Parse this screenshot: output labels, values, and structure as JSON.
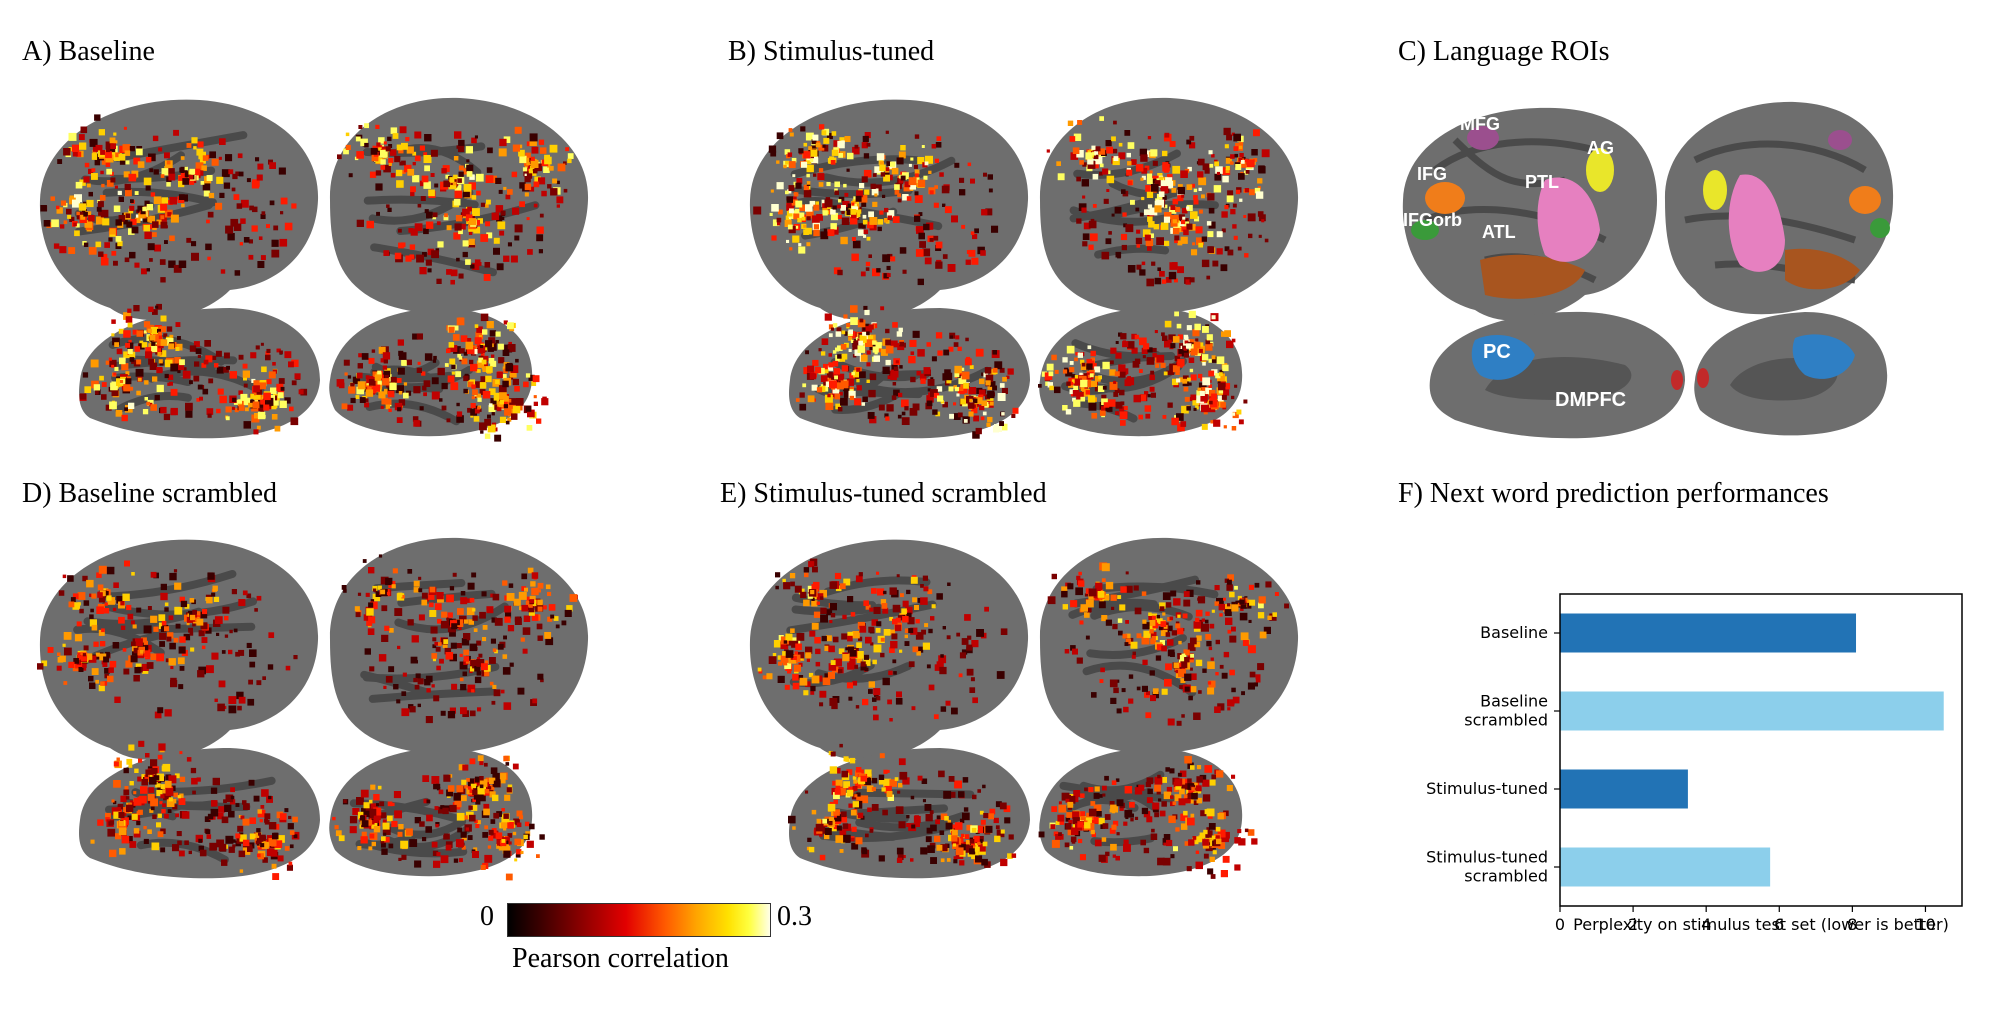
{
  "panels": {
    "a": "A) Baseline",
    "b": "B) Stimulus-tuned",
    "c": "C) Language ROIs",
    "d": "D) Baseline scrambled",
    "e": "E) Stimulus-tuned scrambled",
    "f": "F) Next word prediction  performances"
  },
  "rois": {
    "mfg": "MFG",
    "ifg": "IFG",
    "ifgorb": "IFGorb",
    "atl": "ATL",
    "ptl": "PTL",
    "ag": "AG",
    "pc": "PC",
    "dmpfc": "DMPFC"
  },
  "colorbar": {
    "min": "0",
    "max": "0.3",
    "label": "Pearson correlation"
  },
  "colors": {
    "cortex": "#6e6e6e",
    "sulci": "#4a4a4a",
    "dark_blue": "#2273b5",
    "light_blue": "#8ccfeb",
    "roi_mfg": "#9b4f8e",
    "roi_ifg": "#f07d1a",
    "roi_ifgorb": "#3a9a3a",
    "roi_atl": "#a8551f",
    "roi_ptl": "#e680c0",
    "roi_ag": "#e9e62a",
    "roi_pc": "#2f7fc4",
    "roi_dmpfc": "#c22a2a"
  },
  "chart_data": {
    "type": "bar",
    "orientation": "horizontal",
    "categories": [
      "Baseline",
      "Baseline\nscrambled",
      "Stimulus-tuned",
      "Stimulus-tuned\nscrambled"
    ],
    "category_lines": [
      [
        "Baseline"
      ],
      [
        "Baseline",
        "scrambled"
      ],
      [
        "Stimulus-tuned"
      ],
      [
        "Stimulus-tuned",
        "scrambled"
      ]
    ],
    "values": [
      8.1,
      10.5,
      3.5,
      5.75
    ],
    "bar_colors": [
      "#2273b5",
      "#8ccfeb",
      "#2273b5",
      "#8ccfeb"
    ],
    "xlabel": "Perplexity on stimulus test set (lower is better)",
    "xlim": [
      0,
      11
    ],
    "xticks": [
      0,
      2,
      4,
      6,
      8,
      10
    ],
    "grid": false
  }
}
